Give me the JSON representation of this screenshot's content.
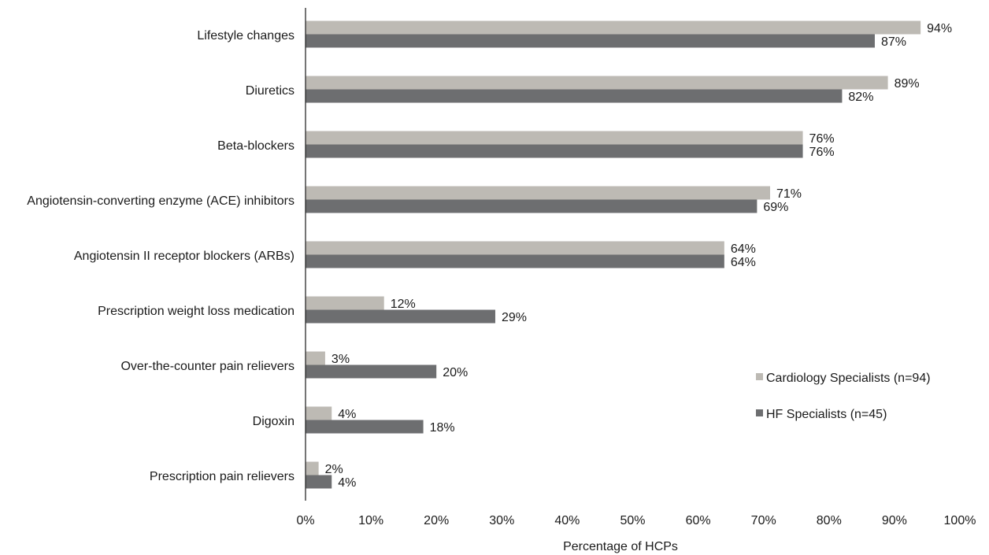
{
  "chart_data": {
    "type": "bar",
    "orientation": "horizontal",
    "categories": [
      "Lifestyle changes",
      "Diuretics",
      "Beta-blockers",
      "Angiotensin-converting enzyme (ACE) inhibitors",
      "Angiotensin II receptor blockers (ARBs)",
      "Prescription weight loss medication",
      "Over-the-counter pain relievers",
      "Digoxin",
      "Prescription pain relievers"
    ],
    "series": [
      {
        "name": "Cardiology Specialists (n=94)",
        "color": "#bdbab4",
        "values": [
          94,
          89,
          76,
          71,
          64,
          12,
          3,
          4,
          2
        ]
      },
      {
        "name": "HF Specialists (n=45)",
        "color": "#6d6e70",
        "values": [
          87,
          82,
          76,
          69,
          64,
          29,
          20,
          18,
          4
        ]
      }
    ],
    "value_suffix": "%",
    "xlim": [
      0,
      100
    ],
    "xticks": [
      "0%",
      "10%",
      "20%",
      "30%",
      "40%",
      "50%",
      "60%",
      "70%",
      "80%",
      "90%",
      "100%"
    ],
    "xlabel": "Percentage of HCPs",
    "ylabel": "",
    "title": "",
    "grid": false,
    "legend_position": "right-middle"
  }
}
